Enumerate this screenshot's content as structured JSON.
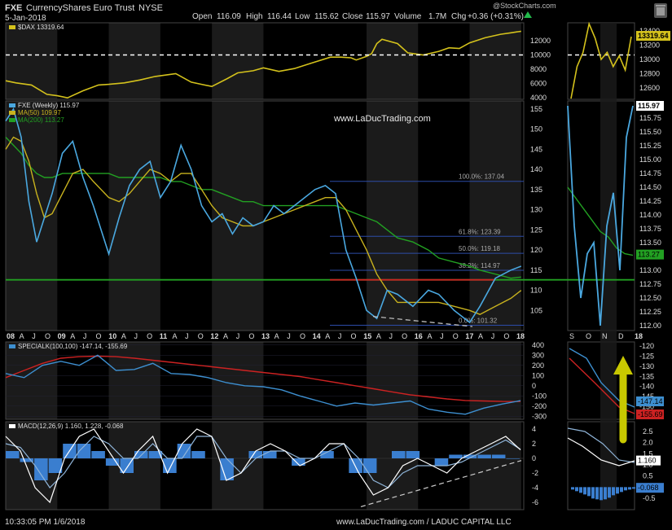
{
  "header": {
    "symbol": "FXE",
    "name": "CurrencyShares Euro Trust",
    "exchange": "NYSE",
    "date": "5-Jan-2018",
    "open_label": "Open",
    "open": "116.09",
    "high_label": "High",
    "high": "116.44",
    "low_label": "Low",
    "low": "115.62",
    "close_label": "Close",
    "close": "115.97",
    "volume_label": "Volume",
    "volume": "1.7M",
    "chg_label": "Chg",
    "chg": "+0.36 (+0.31%)",
    "brand": "@StockCharts.com"
  },
  "watermark": "www.LaDucTrading.com",
  "footer": {
    "timestamp": "10:33:05 PM 1/6/2018",
    "credit": "www.LaDucTrading.com / LADUC CAPITAL LLC"
  },
  "colors": {
    "price": "#4aa8e0",
    "dax": "#d4c21c",
    "ma50": "#c8b21e",
    "ma200": "#22a022",
    "special": "#3d8fd0",
    "special_signal": "#cc2222",
    "macd": "#ffffff",
    "macd_signal": "#8fb4d8",
    "histogram": "#3a7ecf",
    "shade": "#1b1b1b",
    "arrow": "#c8c800",
    "support": "#22a022",
    "resistance": "#cc2222"
  },
  "chart_data": [
    {
      "type": "line",
      "panel": "dax",
      "title": "$DAX 13319.64",
      "series": [
        {
          "name": "$DAX",
          "values": [
            6400,
            6100,
            5800,
            4500,
            4300,
            4000,
            5000,
            5800,
            5900,
            6100,
            6500,
            7000,
            7400,
            6200,
            5900,
            5600,
            6700,
            7500,
            7800,
            8200,
            7700,
            8100,
            8800,
            9700,
            9700,
            9600,
            9300,
            9800,
            10200,
            11600,
            12200,
            11600,
            10300,
            10000,
            10500,
            11000,
            10900,
            11700,
            12400,
            12900,
            13100,
            13319.64
          ]
        }
      ],
      "x": [
        2008.0,
        2008.2,
        2008.5,
        2008.8,
        2009.0,
        2009.2,
        2009.5,
        2009.8,
        2010.0,
        2010.3,
        2010.6,
        2010.9,
        2011.3,
        2011.6,
        2011.8,
        2012.0,
        2012.3,
        2012.5,
        2012.8,
        2013.0,
        2013.3,
        2013.6,
        2013.9,
        2014.3,
        2014.5,
        2014.7,
        2014.8,
        2015.0,
        2015.1,
        2015.2,
        2015.3,
        2015.6,
        2015.8,
        2016.1,
        2016.4,
        2016.6,
        2016.8,
        2017.0,
        2017.3,
        2017.6,
        2017.8,
        2018.0
      ],
      "ylim": [
        3800,
        14500
      ],
      "y_ticks": [
        "4000",
        "6000",
        "8000",
        "10000",
        "12000"
      ],
      "reference_line": 10000
    },
    {
      "type": "line",
      "panel": "dax-inset",
      "y_ticks": [
        "12600",
        "12800",
        "13000",
        "13200",
        "13400"
      ],
      "last_value": "13319.64",
      "series": [
        {
          "name": "$DAX",
          "values": [
            12450,
            12900,
            13100,
            13500,
            13300,
            13000,
            13100,
            12900,
            13050,
            12850,
            13319.64
          ]
        }
      ]
    },
    {
      "type": "line",
      "panel": "price",
      "title": "FXE (Weekly) 115.97",
      "series": [
        {
          "name": "FXE (Weekly)",
          "label": "FXE (Weekly) 115.97",
          "values": [
            152,
            155,
            148,
            132,
            122,
            128,
            134,
            144,
            147,
            138,
            131,
            119,
            128,
            136,
            140,
            142,
            133,
            137,
            146,
            140,
            131,
            127,
            129,
            124,
            128,
            126,
            127,
            131,
            129,
            131,
            133,
            135,
            136,
            134,
            120,
            113,
            105,
            103,
            110,
            109,
            106,
            110,
            109,
            105,
            102,
            106,
            113,
            115,
            115.97
          ]
        },
        {
          "name": "MA(50)",
          "label": "MA(50) 109.97",
          "values": [
            145,
            148,
            147,
            142,
            134,
            128,
            129,
            134,
            139,
            140,
            137,
            133,
            132,
            134,
            137,
            140,
            139,
            137,
            139,
            139,
            135,
            131,
            128,
            127,
            126,
            126,
            127,
            128,
            129,
            130,
            131,
            132,
            133,
            133,
            130,
            125,
            120,
            114,
            110,
            107,
            107,
            107,
            107,
            106,
            105,
            104,
            106,
            108,
            109.97
          ]
        },
        {
          "name": "MA(200)",
          "label": "MA(200) 113.27",
          "values": [
            148,
            146,
            144,
            141,
            139,
            138,
            138,
            139,
            139,
            139,
            139,
            139,
            138,
            138,
            138,
            138,
            138,
            137,
            137,
            136,
            135,
            135,
            134,
            133,
            132,
            132,
            131,
            131,
            131,
            131,
            131,
            131,
            131,
            131,
            130,
            129,
            128,
            127,
            125,
            123,
            122,
            120,
            118,
            117,
            116,
            115,
            114,
            113,
            113.27
          ]
        }
      ],
      "x": [
        2008.0,
        2008.15,
        2008.3,
        2008.45,
        2008.6,
        2008.75,
        2008.9,
        2009.1,
        2009.3,
        2009.5,
        2009.7,
        2010.0,
        2010.2,
        2010.4,
        2010.6,
        2010.8,
        2011.0,
        2011.2,
        2011.4,
        2011.6,
        2011.8,
        2012.0,
        2012.2,
        2012.4,
        2012.6,
        2012.8,
        2013.0,
        2013.2,
        2013.4,
        2013.6,
        2013.8,
        2014.0,
        2014.2,
        2014.4,
        2014.6,
        2014.8,
        2015.0,
        2015.2,
        2015.4,
        2015.6,
        2015.9,
        2016.2,
        2016.4,
        2016.7,
        2017.0,
        2017.2,
        2017.5,
        2017.8,
        2018.0
      ],
      "ylim": [
        100,
        157
      ],
      "y_ticks": [
        "105",
        "110",
        "115",
        "120",
        "125",
        "130",
        "135",
        "140",
        "145",
        "150",
        "155"
      ],
      "fibonacci": [
        {
          "label": "100.0%: 137.04",
          "value": 137.04
        },
        {
          "label": "61.8%: 123.39",
          "value": 123.39
        },
        {
          "label": "50.0%: 119.18",
          "value": 119.18
        },
        {
          "label": "38.2%: 114.97",
          "value": 114.97
        },
        {
          "label": "0.0%: 101.32",
          "value": 101.32
        }
      ],
      "support_line": 112.6,
      "x_ticks": [
        "08",
        "A",
        "J",
        "O",
        "09",
        "A",
        "J",
        "O",
        "10",
        "A",
        "J",
        "O",
        "11",
        "A",
        "J",
        "O",
        "12",
        "A",
        "J",
        "O",
        "13",
        "A",
        "J",
        "O",
        "14",
        "A",
        "J",
        "O",
        "15",
        "A",
        "J",
        "O",
        "16",
        "A",
        "J",
        "O",
        "17",
        "A",
        "J",
        "O",
        "18"
      ]
    },
    {
      "type": "line",
      "panel": "price-inset",
      "y_ticks": [
        "112.00",
        "112.25",
        "112.50",
        "112.75",
        "113.00",
        "113.25",
        "113.50",
        "113.75",
        "114.00",
        "114.25",
        "114.50",
        "114.75",
        "115.00",
        "115.25",
        "115.50",
        "115.75"
      ],
      "last_value": "115.97",
      "ma200_value": "113.27",
      "x_ticks": [
        "S",
        "O",
        "N",
        "D",
        "18"
      ],
      "series": [
        {
          "name": "FXE (Weekly)",
          "values": [
            115.97,
            113.8,
            112.5,
            113.3,
            113.5,
            112.0,
            113.8,
            114.4,
            113.0,
            115.4,
            115.97
          ]
        },
        {
          "name": "MA(200)",
          "values": [
            114.5,
            114.3,
            114.1,
            113.9,
            113.7,
            113.6,
            113.4,
            113.3,
            113.27
          ]
        }
      ]
    },
    {
      "type": "line",
      "panel": "specialk",
      "title": "SPECIALK(100,100) -147.14, -155.69",
      "series": [
        {
          "name": "SPECIALK",
          "values": [
            120,
            80,
            200,
            240,
            200,
            300,
            150,
            160,
            220,
            120,
            110,
            80,
            30,
            0,
            -10,
            -40,
            -100,
            -150,
            -200,
            -170,
            -190,
            -170,
            -150,
            -230,
            -260,
            -280,
            -220,
            -180,
            -147.14
          ]
        },
        {
          "name": "Signal",
          "values": [
            80,
            150,
            220,
            270,
            285,
            290,
            285,
            270,
            250,
            230,
            210,
            190,
            170,
            150,
            130,
            110,
            90,
            60,
            30,
            0,
            -30,
            -60,
            -90,
            -110,
            -130,
            -145,
            -150,
            -155,
            -155.69
          ]
        }
      ],
      "ylim": [
        -330,
        430
      ],
      "y_ticks": [
        "400",
        "300",
        "200",
        "100",
        "0",
        "-100",
        "-200",
        "-300"
      ],
      "inset_ticks": [
        "-120",
        "-125",
        "-130",
        "-135",
        "-140",
        "-145",
        "-150",
        "-155"
      ],
      "inset_labels": [
        "-147.14",
        "-155.69"
      ]
    },
    {
      "type": "line",
      "panel": "macd",
      "title": "MACD(12,26,9) 1.160, 1.228, -0.068",
      "series": [
        {
          "name": "MACD",
          "values": [
            3,
            1,
            -4,
            -6,
            0,
            3,
            4,
            1,
            -2,
            1,
            3,
            -2,
            2,
            4,
            3,
            -3,
            -2,
            1,
            2,
            1,
            -1,
            0,
            2,
            2,
            -2,
            -5,
            -4,
            -1,
            0,
            -1,
            -2,
            0,
            1,
            2,
            3,
            1.16
          ]
        },
        {
          "name": "Signal",
          "values": [
            2,
            1.5,
            -1,
            -4,
            -2,
            1,
            3,
            2,
            0,
            0,
            2,
            0,
            0,
            3,
            3,
            0,
            -2,
            0,
            1,
            1,
            0,
            0,
            1,
            2,
            0,
            -3,
            -4,
            -2,
            -1,
            -1,
            -1,
            -0.5,
            0.5,
            1.5,
            2.5,
            1.228
          ]
        },
        {
          "name": "Histogram",
          "values": [
            1,
            -0.5,
            -3,
            -2,
            2,
            2,
            1,
            -1,
            -2,
            1,
            1,
            -2,
            2,
            1,
            0,
            -3,
            0,
            1,
            1,
            0,
            -1,
            0,
            1,
            0,
            -2,
            -2,
            0,
            1,
            1,
            0,
            -1,
            0.5,
            0.5,
            0.5,
            0.5,
            -0.068
          ]
        }
      ],
      "ylim": [
        -7,
        5
      ],
      "y_ticks": [
        "4",
        "2",
        "0",
        "-2",
        "-4",
        "-6"
      ],
      "inset_ticks": [
        "2.5",
        "2.0",
        "1.5",
        "1.0",
        "0.5",
        "0.0",
        "-0.5"
      ],
      "inset_labels": [
        "1.160",
        "-0.068"
      ]
    }
  ]
}
